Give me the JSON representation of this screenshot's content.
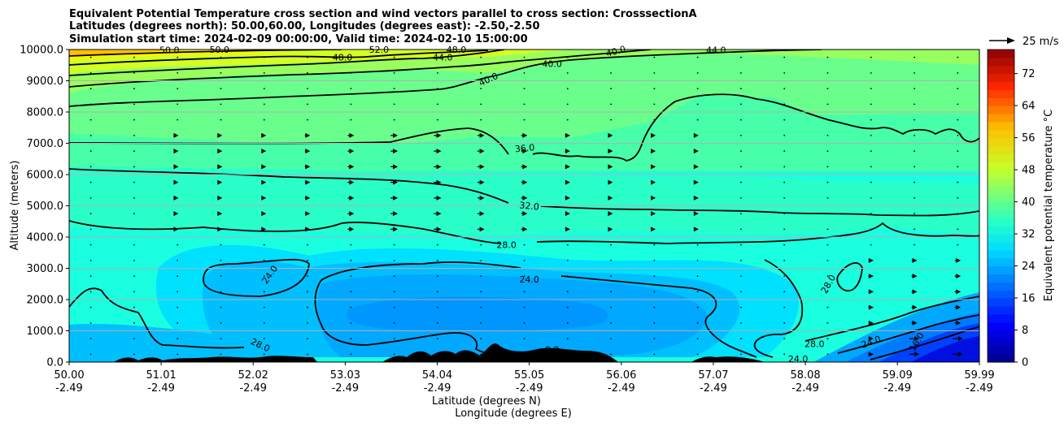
{
  "chart_data": {
    "type": "contourf",
    "title_lines": [
      "Equivalent Potential Temperature cross section and wind vectors parallel to cross section: CrosssectionA",
      "Latitudes (degrees north): 50.00,60.00, Longitudes (degrees east): -2.50,-2.50",
      "Simulation start time: 2024-02-09 00:00:00, Valid time: 2024-02-10 15:00:00"
    ],
    "xlabel": "Latitude (degrees N)",
    "xlabel2": "Longitude (degrees E)",
    "ylabel": "Altitude (meters)",
    "xlim": [
      50.0,
      59.99
    ],
    "ylim": [
      0,
      10000
    ],
    "x_ticks": [
      {
        "lat": "50.00",
        "lon": "-2.49",
        "value": 50.0
      },
      {
        "lat": "51.01",
        "lon": "-2.49",
        "value": 51.01
      },
      {
        "lat": "52.02",
        "lon": "-2.49",
        "value": 52.02
      },
      {
        "lat": "53.03",
        "lon": "-2.49",
        "value": 53.03
      },
      {
        "lat": "54.04",
        "lon": "-2.49",
        "value": 54.04
      },
      {
        "lat": "55.05",
        "lon": "-2.49",
        "value": 55.05
      },
      {
        "lat": "56.06",
        "lon": "-2.49",
        "value": 56.06
      },
      {
        "lat": "57.07",
        "lon": "-2.49",
        "value": 57.07
      },
      {
        "lat": "58.08",
        "lon": "-2.49",
        "value": 58.08
      },
      {
        "lat": "59.09",
        "lon": "-2.49",
        "value": 59.09
      },
      {
        "lat": "59.99",
        "lon": "-2.49",
        "value": 59.99
      }
    ],
    "y_ticks": [
      {
        "label": "0.0",
        "value": 0
      },
      {
        "label": "1000.0",
        "value": 1000
      },
      {
        "label": "2000.0",
        "value": 2000
      },
      {
        "label": "3000.0",
        "value": 3000
      },
      {
        "label": "4000.0",
        "value": 4000
      },
      {
        "label": "5000.0",
        "value": 5000
      },
      {
        "label": "6000.0",
        "value": 6000
      },
      {
        "label": "7000.0",
        "value": 7000
      },
      {
        "label": "8000.0",
        "value": 8000
      },
      {
        "label": "9000.0",
        "value": 9000
      },
      {
        "label": "10000.0",
        "value": 10000
      }
    ],
    "grid": "horizontal",
    "colorbar": {
      "label": "Equivalent potential temperature °C",
      "min": 0,
      "max": 78,
      "ticks": [
        "0",
        "8",
        "16",
        "24",
        "32",
        "40",
        "48",
        "56",
        "64",
        "72"
      ]
    },
    "quiver_key": {
      "label": "25 m/s",
      "speed": 25
    },
    "contour_labels": [
      {
        "text": "24.0",
        "x": 52.2,
        "y": 2800,
        "rot": -55
      },
      {
        "text": "24.0",
        "x": 55.05,
        "y": 2650,
        "rot": 0
      },
      {
        "text": "24.0",
        "x": 58.0,
        "y": 100,
        "rot": 0
      },
      {
        "text": "24.0",
        "x": 58.8,
        "y": 650,
        "rot": -20
      },
      {
        "text": "28.0",
        "x": 52.1,
        "y": 550,
        "rot": 25
      },
      {
        "text": "28.0",
        "x": 54.8,
        "y": 3750,
        "rot": 0
      },
      {
        "text": "28.0",
        "x": 58.18,
        "y": 580,
        "rot": 0
      },
      {
        "text": "28.0",
        "x": 58.33,
        "y": 2500,
        "rot": -60
      },
      {
        "text": "32.0",
        "x": 55.05,
        "y": 5000,
        "rot": 5
      },
      {
        "text": "36.0",
        "x": 55.0,
        "y": 6850,
        "rot": -5
      },
      {
        "text": "40.0",
        "x": 54.6,
        "y": 9050,
        "rot": -25
      },
      {
        "text": "40.0",
        "x": 55.3,
        "y": 9550,
        "rot": 0
      },
      {
        "text": "40.0",
        "x": 56.0,
        "y": 9950,
        "rot": -15
      },
      {
        "text": "44.0",
        "x": 54.1,
        "y": 9750,
        "rot": 0
      },
      {
        "text": "44.0",
        "x": 57.1,
        "y": 9990,
        "rot": 0
      },
      {
        "text": "48.0",
        "x": 53.0,
        "y": 9750,
        "rot": 0
      },
      {
        "text": "48.0",
        "x": 54.25,
        "y": 10000,
        "rot": 0
      },
      {
        "text": "50.0",
        "x": 51.1,
        "y": 9990,
        "rot": 0
      },
      {
        "text": "50.0",
        "x": 51.65,
        "y": 10000,
        "rot": 0
      },
      {
        "text": "52.0",
        "x": 53.4,
        "y": 10000,
        "rot": 0
      },
      {
        "text": "0.0",
        "x": 55.3,
        "y": 400,
        "rot": 0
      },
      {
        "text": "16.0",
        "x": 59.3,
        "y": 650,
        "rot": -60
      }
    ]
  }
}
